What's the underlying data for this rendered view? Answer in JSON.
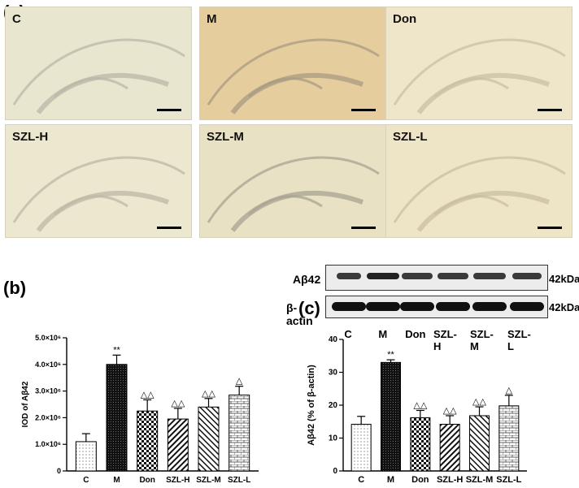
{
  "panel_labels": [
    "(a)",
    "(b)",
    "(c)"
  ],
  "micrographs": [
    {
      "label": "C",
      "tone": "#e9e6cf",
      "ring": "#b9b7a8"
    },
    {
      "label": "M",
      "tone": "#e6cd9e",
      "ring": "#a89b82"
    },
    {
      "label": "Don",
      "tone": "#efe6c9",
      "ring": "#c8bfa6"
    },
    {
      "label": "SZL-H",
      "tone": "#ece7cf",
      "ring": "#bdb8a5"
    },
    {
      "label": "SZL-M",
      "tone": "#e8e1c3",
      "ring": "#a8a393"
    },
    {
      "label": "SZL-L",
      "tone": "#eee5c6",
      "ring": "#c9bea1"
    }
  ],
  "western_blot": {
    "rows": [
      {
        "protein": "Aβ42",
        "kda": "42kDa"
      },
      {
        "protein": "β-actin",
        "kda": "42kDa"
      }
    ],
    "lanes": [
      "C",
      "M",
      "Don",
      "SZL-H",
      "SZL-M",
      "SZL-L"
    ]
  },
  "chart_data": [
    {
      "type": "bar",
      "panel": "(b)",
      "categories": [
        "C",
        "M",
        "Don",
        "SZL-H",
        "SZL-M",
        "SZL-L"
      ],
      "values": [
        1100000,
        4000000,
        2250000,
        1950000,
        2400000,
        2850000
      ],
      "errors": [
        300000,
        350000,
        420000,
        400000,
        320000,
        330000
      ],
      "significance": [
        "",
        "**",
        "△△",
        "△△",
        "△△",
        "△"
      ],
      "ylabel": "IOD of Aβ42",
      "ylim": [
        0,
        5000000
      ],
      "yticks": [
        0,
        1000000,
        2000000,
        3000000,
        4000000,
        5000000
      ],
      "ytick_labels": [
        "0",
        "1.0×10⁶",
        "2.0×10⁶",
        "3.0×10⁶",
        "4.0×10⁶",
        "5.0×10⁶"
      ]
    },
    {
      "type": "bar",
      "panel": "(c)",
      "categories": [
        "C",
        "M",
        "Don",
        "SZL-H",
        "SZL-M",
        "SZL-L"
      ],
      "values": [
        14.2,
        33.0,
        16.2,
        14.2,
        16.8,
        19.8
      ],
      "errors": [
        2.4,
        0.8,
        2.2,
        2.6,
        2.7,
        3.2
      ],
      "significance": [
        "",
        "**",
        "△△",
        "△△",
        "△△",
        "△"
      ],
      "ylabel": "Aβ42  (% of β-actin)",
      "ylim": [
        0,
        40
      ],
      "yticks": [
        0,
        10,
        20,
        30,
        40
      ],
      "ytick_labels": [
        "0",
        "10",
        "20",
        "30",
        "40"
      ]
    }
  ]
}
